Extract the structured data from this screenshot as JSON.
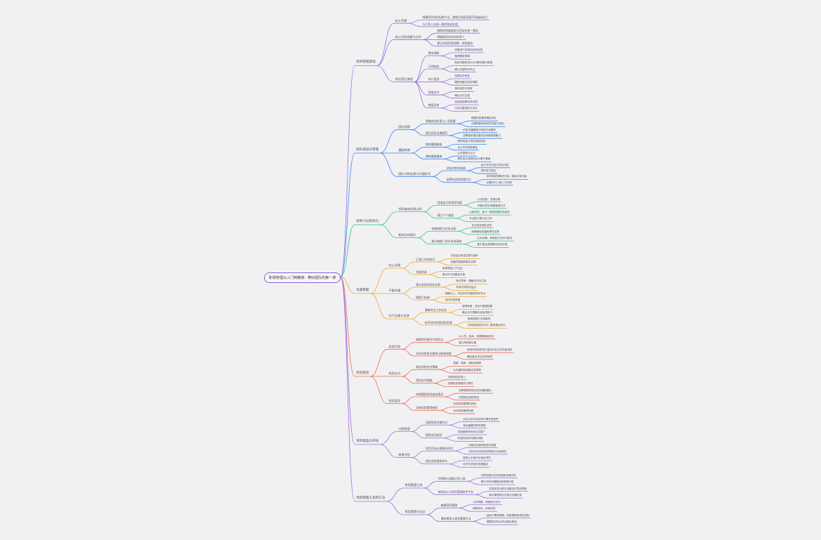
{
  "root": "职场管理从入门到精通：带好团队的第一课",
  "colors": {
    "branch0": "#9b6dde",
    "branch1": "#3b82f6",
    "branch2": "#2fbf8a",
    "branch3": "#f5a623",
    "branch4": "#f26b4f",
    "branch5": "#9b6dde",
    "branch6": "#9b6dde",
    "root_border": "#8a5fd0"
  },
  "branches": [
    {
      "label": "项目管理基础",
      "children": [
        {
          "label": "定义范围",
          "children": [
            {
              "label": "明确项目的目标和产出，避免后续因范围不清造成返工"
            },
            {
              "label": "与干系人达成一致并形成文档"
            }
          ]
        },
        {
          "label": "核心目标拆解与对齐",
          "children": [
            {
              "label": "按照时间维度拆分目标并逐一落实"
            },
            {
              "label": "明确各项任务的负责人"
            },
            {
              "label": "建立阶段性里程碑，持续跟进"
            }
          ]
        },
        {
          "label": "常见项目流程",
          "children": [
            {
              "label": "需求调研",
              "children": [
                {
                  "label": "收集用户的真实反馈信息"
                },
                {
                  "label": "整理需求清单"
                }
              ]
            },
            {
              "label": "计划制定",
              "children": [
                {
                  "label": "制定详细的执行计划和资源分配表"
                },
                {
                  "label": "确认关键时间节点"
                }
              ]
            },
            {
              "label": "执行监控",
              "children": [
                {
                  "label": "定期召开例会"
                },
                {
                  "label": "跟踪进度并及时调整"
                }
              ]
            },
            {
              "label": "验收交付",
              "children": [
                {
                  "label": "按标准进行验收"
                },
                {
                  "label": "输出交付文档"
                }
              ]
            },
            {
              "label": "复盘总结",
              "children": [
                {
                  "label": "总结经验教训并归档"
                },
                {
                  "label": "沉淀可复用的方法论"
                }
              ]
            }
          ]
        }
      ]
    },
    {
      "label": "团队建设与管理",
      "children": [
        {
          "label": "团队组建",
          "children": [
            {
              "label": "明确岗位职责与人员配置",
              "children": [
                {
                  "label": "根据项目需求确定岗位"
                },
                {
                  "label": "合理搭配新老成员的能力结构"
                }
              ]
            },
            {
              "label": "建立团队沟通规范",
              "children": [
                {
                  "label": "约定沟通渠道与响应时间要求"
                },
                {
                  "label": "定期组织团队建设活动增强凝聚力"
                }
              ]
            }
          ]
        },
        {
          "label": "激励机制",
          "children": [
            {
              "label": "物质激励措施",
              "children": [
                {
                  "label": "绩效奖金与项目奖励挂钩"
                },
                {
                  "label": "设立专项奖励基金"
                }
              ]
            },
            {
              "label": "精神激励措施",
              "children": [
                {
                  "label": "公开表扬与认可"
                },
                {
                  "label": "提供成长发展机会与晋升通道"
                }
              ]
            }
          ]
        },
        {
          "label": "团队冲突处理与沟通技巧",
          "children": [
            {
              "label": "识别冲突的根源",
              "children": [
                {
                  "label": "区分任务冲突与关系冲突"
                },
                {
                  "label": "倾听各方观点"
                }
              ]
            },
            {
              "label": "选择合适的处理方式",
              "children": [
                {
                  "label": "寻求双赢的解决方案，避免冲突升级"
                },
                {
                  "label": "必要时引入第三方协调"
                }
              ]
            }
          ]
        }
      ]
    },
    {
      "label": "领导力与影响力",
      "children": [
        {
          "label": "领导者的自我认知",
          "children": [
            {
              "label": "找准自己的领导风格",
              "children": [
                {
                  "label": "认识自我，发现优势"
                },
                {
                  "label": "不断反思并调整管理方式"
                }
              ]
            },
            {
              "label": "建立个人威信",
              "children": [
                {
                  "label": "以身作则，言行一致赢得团队的信任"
                },
                {
                  "label": "专业能力是立足之本"
                }
              ]
            }
          ]
        },
        {
          "label": "影响力的提升",
          "children": [
            {
              "label": "有效授权与任务分配",
              "children": [
                {
                  "label": "充分信任团队成员"
                },
                {
                  "label": "明确授权范围和责任边界"
                }
              ]
            },
            {
              "label": "建立跨部门合作关系网络",
              "children": [
                {
                  "label": "主动沟通，争取各方支持与配合"
                },
                {
                  "label": "善于整合资源推动目标实现"
                }
              ]
            }
          ]
        }
      ]
    },
    {
      "label": "沟通管理",
      "children": [
        {
          "label": "向上沟通",
          "children": [
            {
              "label": "汇报工作的技巧",
              "children": [
                {
                  "label": "先说结论再讲过程与细节"
                },
                {
                  "label": "准备好数据和事实支撑"
                }
              ]
            },
            {
              "label": "争取资源",
              "children": [
                {
                  "label": "讲清楚投入产出比"
                },
                {
                  "label": "提出可行的备选方案"
                }
              ]
            }
          ]
        },
        {
          "label": "平级沟通",
          "children": [
            {
              "label": "建立良好的协作关系",
              "children": [
                {
                  "label": "换位思考，理解对方的立场"
                },
                {
                  "label": "寻求共同的利益点"
                }
              ]
            },
            {
              "label": "跨部门协调",
              "children": [
                {
                  "label": "明确分工，约定协作流程和时间节点"
                },
                {
                  "label": "及时反馈进展"
                }
              ]
            }
          ]
        },
        {
          "label": "向下沟通与反馈",
          "children": [
            {
              "label": "清晰传达工作任务",
              "children": [
                {
                  "label": "说明背景、目标与期望结果"
                },
                {
                  "label": "确认对方理解无误后再执行"
                }
              ]
            },
            {
              "label": "给予及时的建设性反馈",
              "children": [
                {
                  "label": "具体描述行为和影响"
                },
                {
                  "label": "共同制定改进计划，跟进落实执行"
                }
              ]
            }
          ]
        }
      ]
    },
    {
      "label": "风险管控",
      "children": [
        {
          "label": "风险识别",
          "children": [
            {
              "label": "梳理项目各环节风险点",
              "children": [
                {
                  "label": "从人员、技术、资源等维度分析"
                },
                {
                  "label": "建立风险登记册"
                }
              ]
            },
            {
              "label": "评估风险发生概率与影响程度",
              "children": [
                {
                  "label": "使用风险矩阵进行量化评估与优先级排序"
                },
                {
                  "label": "确定重点关注的风险项"
                }
              ]
            }
          ]
        },
        {
          "label": "风险应对",
          "children": [
            {
              "label": "制定风险应对策略",
              "children": [
                {
                  "label": "规避、转移、减轻或接受"
                },
                {
                  "label": "为关键风险准备应急预案"
                }
              ]
            },
            {
              "label": "落实应对措施",
              "children": [
                {
                  "label": "分配风险负责人"
                },
                {
                  "label": "定期检查措施执行情况"
                }
              ]
            }
          ]
        },
        {
          "label": "风险监控",
          "children": [
            {
              "label": "持续跟踪风险变化情况",
              "children": [
                {
                  "label": "定期更新风险状态并通报团队"
                },
                {
                  "label": "识别新出现的风险"
                }
              ]
            },
            {
              "label": "总结风险管理经验",
              "children": [
                {
                  "label": "形成风险管理知识库"
                },
                {
                  "label": "优化风险管理流程"
                }
              ]
            }
          ]
        }
      ]
    },
    {
      "label": "项目复盘与评估",
      "children": [
        {
          "label": "过程复盘",
          "children": [
            {
              "label": "回顾项目关键节点",
              "children": [
                {
                  "label": "对比计划与实际执行情况的差异"
                },
                {
                  "label": "找出偏差的根本原因"
                }
              ]
            },
            {
              "label": "提炼成功经验",
              "children": [
                {
                  "label": "总结做得好的地方并推广"
                },
                {
                  "label": "形成标准化的操作流程"
                }
              ]
            }
          ]
        },
        {
          "label": "结果评估",
          "children": [
            {
              "label": "项目目标达成情况评估",
              "children": [
                {
                  "label": "对照目标逐项检查完成度"
                },
                {
                  "label": "分析未达成目标的原因与后续改进"
                }
              ]
            },
            {
              "label": "团队成员绩效评价",
              "children": [
                {
                  "label": "客观公正地评价每位成员"
                },
                {
                  "label": "给予针对性的发展建议"
                }
              ]
            }
          ]
        }
      ]
    },
    {
      "label": "项目管理工具和方法",
      "children": [
        {
          "label": "常用管理工具",
          "children": [
            {
              "label": "甘特图与进度计划工具",
              "children": [
                {
                  "label": "可视化展示任务进度和依赖关系"
                },
                {
                  "label": "便于识别关键路径和资源冲突"
                }
              ]
            },
            {
              "label": "协同办公与项目管理软件平台",
              "children": [
                {
                  "label": "实现任务分配与进度实时同步更新"
                },
                {
                  "label": "集中管理项目文档与沟通记录"
                }
              ]
            }
          ]
        },
        {
          "label": "常用管理方法论",
          "children": [
            {
              "label": "敏捷项目管理",
              "children": [
                {
                  "label": "小步快跑，快速迭代交付"
                },
                {
                  "label": "拥抱变化，持续改进"
                }
              ]
            },
            {
              "label": "瀑布模型与混合管理方法",
              "children": [
                {
                  "label": "适用于需求明确、阶段清晰的项目类型"
                },
                {
                  "label": "根据项目特点灵活组合使用"
                }
              ]
            }
          ]
        }
      ]
    }
  ]
}
